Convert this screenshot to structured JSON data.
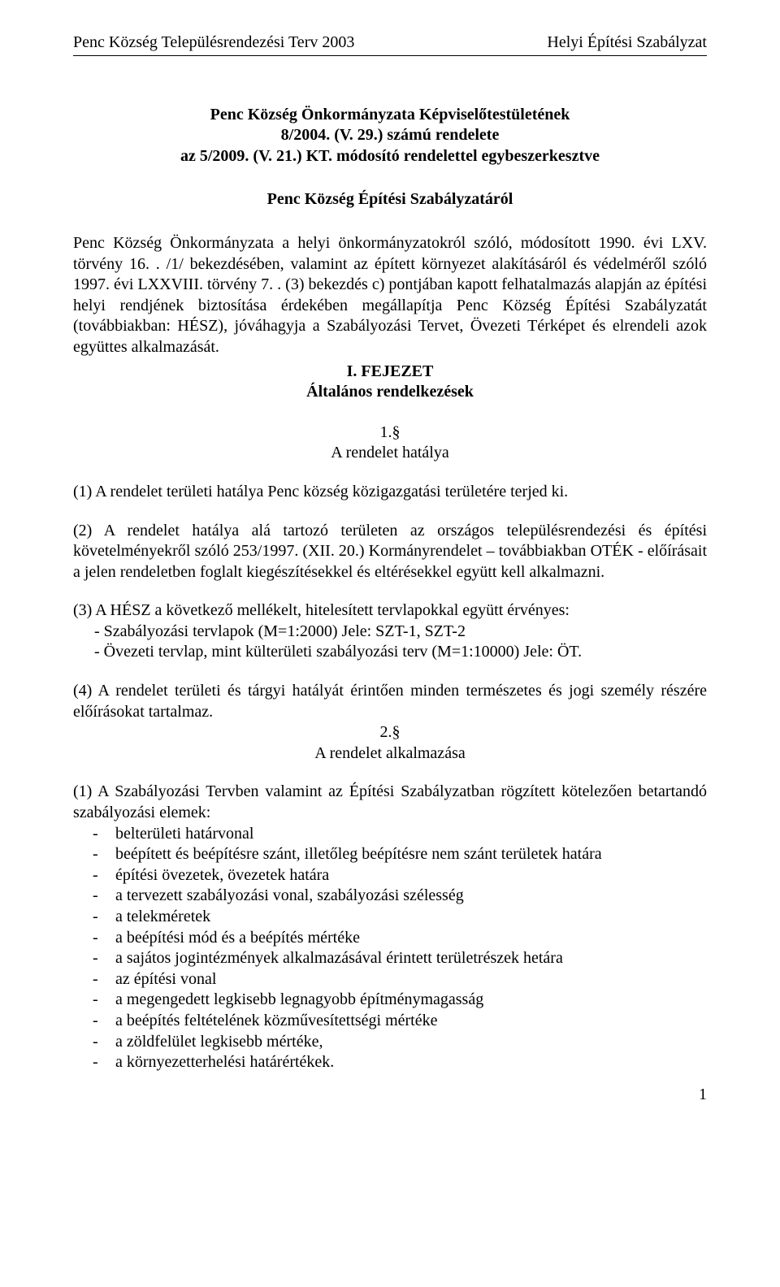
{
  "header": {
    "left": "Penc Község Településrendezési Terv 2003",
    "right": "Helyi Építési Szabályzat"
  },
  "title": {
    "line1": "Penc Község Önkormányzata Képviselőtestületének",
    "line2": "8/2004. (V. 29.) számú rendelete",
    "line3": "az 5/2009. (V. 21.) KT. módosító rendelettel egybeszerkesztve"
  },
  "subtitle": "Penc Község Építési Szabályzatáról",
  "preamble": "Penc Község Önkormányzata a helyi önkormányzatokról szóló, módosított 1990. évi LXV. törvény 16. . /1/ bekezdésében, valamint az épített környezet alakításáról és védelméről szóló 1997. évi LXXVIII. törvény 7. . (3) bekezdés c) pontjában kapott felhatalmazás alapján az építési helyi rendjének biztosítása érdekében megállapítja Penc Község Építési Szabályzatát (továbbiakban: HÉSZ), jóváhagyja a Szabályozási Tervet, Övezeti Térképet és elrendeli azok együttes alkalmazását.",
  "chapter": {
    "num": "I. FEJEZET",
    "title": "Általános rendelkezések"
  },
  "section1": {
    "num": "1.§",
    "title": "A rendelet hatálya",
    "p1": "(1) A rendelet területi hatálya Penc község közigazgatási területére terjed ki.",
    "p2": "(2) A rendelet hatálya alá tartozó területen az országos településrendezési és építési követelményekről szóló 253/1997. (XII. 20.) Kormányrendelet – továbbiakban OTÉK - előírásait a jelen rendeletben foglalt kiegészítésekkel és eltérésekkel együtt kell alkalmazni.",
    "p3_lead": "(3) A HÉSZ a következő mellékelt, hitelesített tervlapokkal együtt érvényes:",
    "p3_items": [
      "- Szabályozási tervlapok (M=1:2000) Jele: SZT-1, SZT-2",
      "- Övezeti tervlap, mint külterületi szabályozási terv (M=1:10000) Jele: ÖT."
    ],
    "p4": "(4) A rendelet területi és tárgyi hatályát érintően minden természetes és jogi személy részére előírásokat tartalmaz."
  },
  "section2": {
    "num": "2.§",
    "title": "A rendelet alkalmazása",
    "p1_lead": "(1) A Szabályozási Tervben valamint az Építési Szabályzatban rögzített kötelezően betartandó szabályozási elemek:",
    "items": [
      "belterületi határvonal",
      "beépített és beépítésre szánt, illetőleg beépítésre nem szánt területek határa",
      "építési övezetek, övezetek határa",
      "a tervezett szabályozási vonal, szabályozási szélesség",
      "a telekméretek",
      "a beépítési mód és a beépítés mértéke",
      "a sajátos jogintézmények alkalmazásával érintett területrészek hetára",
      "az építési vonal",
      "a megengedett legkisebb legnagyobb építménymagasság",
      "a beépítés feltételének közművesítettségi mértéke",
      "a zöldfelület legkisebb mértéke,",
      "a környezetterhelési határértékek."
    ]
  },
  "page_number": "1"
}
